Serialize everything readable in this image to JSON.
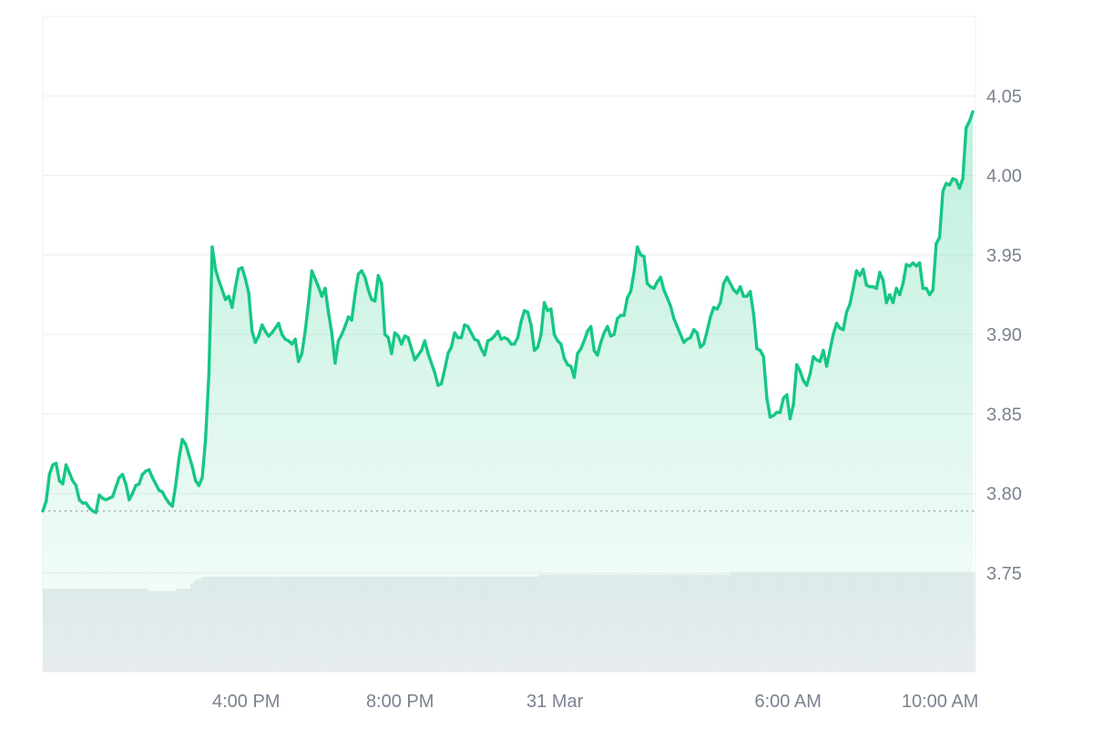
{
  "chart_data": {
    "type": "area",
    "title": "",
    "xlabel": "",
    "ylabel": "",
    "ylim": [
      3.688,
      4.1
    ],
    "y_ticks": [
      "3.75",
      "3.80",
      "3.85",
      "3.90",
      "3.95",
      "4.00",
      "4.05"
    ],
    "x_ticks": [
      "4:00 PM",
      "8:00 PM",
      "31 Mar",
      "6:00 AM",
      "10:00 AM"
    ],
    "reference_line": 3.789,
    "grid": "horizontal",
    "colors": {
      "line_up": "#16c784",
      "line_down": "#ea3943",
      "area_fill": "#16c784",
      "grid": "#eef0f3",
      "reference": "#9aa0a6",
      "volume": "#eaecf0",
      "axis_text": "#7a8290"
    },
    "series": [
      {
        "values": [
          3.789,
          3.795,
          3.812,
          3.818,
          3.819,
          3.808,
          3.806,
          3.818,
          3.813,
          3.808,
          3.805,
          3.796,
          3.794,
          3.794,
          3.791,
          3.789,
          3.788,
          3.799,
          3.797,
          3.796,
          3.797,
          3.798,
          3.804,
          3.81,
          3.812,
          3.806,
          3.796,
          3.8,
          3.805,
          3.806,
          3.812,
          3.814,
          3.815,
          3.81,
          3.806,
          3.802,
          3.801,
          3.797,
          3.794,
          3.792,
          3.805,
          3.822,
          3.834,
          3.831,
          3.824,
          3.817,
          3.808,
          3.805,
          3.81,
          3.834,
          3.875,
          3.955,
          3.941,
          3.934,
          3.928,
          3.922,
          3.924,
          3.917,
          3.93,
          3.941,
          3.942,
          3.935,
          3.926,
          3.902,
          3.895,
          3.899,
          3.906,
          3.902,
          3.899,
          3.901,
          3.904,
          3.907,
          3.9,
          3.897,
          3.896,
          3.894,
          3.897,
          3.883,
          3.888,
          3.902,
          3.92,
          3.94,
          3.935,
          3.93,
          3.924,
          3.929,
          3.914,
          3.901,
          3.882,
          3.896,
          3.9,
          3.905,
          3.911,
          3.909,
          3.925,
          3.938,
          3.94,
          3.936,
          3.928,
          3.922,
          3.921,
          3.937,
          3.932,
          3.9,
          3.898,
          3.888,
          3.901,
          3.899,
          3.894,
          3.899,
          3.898,
          3.891,
          3.884,
          3.887,
          3.89,
          3.896,
          3.888,
          3.882,
          3.876,
          3.868,
          3.869,
          3.878,
          3.888,
          3.892,
          3.901,
          3.898,
          3.898,
          3.906,
          3.905,
          3.901,
          3.897,
          3.896,
          3.891,
          3.887,
          3.896,
          3.897,
          3.899,
          3.902,
          3.897,
          3.898,
          3.897,
          3.894,
          3.894,
          3.898,
          3.908,
          3.915,
          3.914,
          3.906,
          3.89,
          3.892,
          3.9,
          3.92,
          3.915,
          3.916,
          3.9,
          3.896,
          3.894,
          3.885,
          3.881,
          3.88,
          3.873,
          3.888,
          3.891,
          3.896,
          3.902,
          3.905,
          3.89,
          3.887,
          3.895,
          3.901,
          3.905,
          3.899,
          3.9,
          3.91,
          3.912,
          3.912,
          3.923,
          3.927,
          3.939,
          3.955,
          3.95,
          3.949,
          3.932,
          3.93,
          3.929,
          3.933,
          3.936,
          3.928,
          3.923,
          3.918,
          3.91,
          3.905,
          3.9,
          3.895,
          3.897,
          3.898,
          3.903,
          3.901,
          3.892,
          3.894,
          3.902,
          3.911,
          3.917,
          3.916,
          3.92,
          3.932,
          3.936,
          3.932,
          3.928,
          3.926,
          3.93,
          3.924,
          3.924,
          3.927,
          3.913,
          3.891,
          3.89,
          3.886,
          3.86,
          3.848,
          3.849,
          3.851,
          3.851,
          3.86,
          3.862,
          3.847,
          3.856,
          3.881,
          3.877,
          3.871,
          3.868,
          3.875,
          3.886,
          3.884,
          3.883,
          3.89,
          3.88,
          3.89,
          3.9,
          3.907,
          3.904,
          3.903,
          3.914,
          3.919,
          3.929,
          3.94,
          3.937,
          3.941,
          3.931,
          3.93,
          3.93,
          3.929,
          3.939,
          3.934,
          3.92,
          3.925,
          3.92,
          3.929,
          3.925,
          3.932,
          3.944,
          3.943,
          3.945,
          3.943,
          3.945,
          3.929,
          3.929,
          3.925,
          3.928,
          3.957,
          3.961,
          3.99,
          3.995,
          3.994,
          3.998,
          3.997,
          3.992,
          3.998,
          4.03,
          4.034,
          4.04
        ]
      }
    ],
    "volume": [
      0.35,
      0.35,
      0.35,
      0.35,
      0.35,
      0.35,
      0.35,
      0.35,
      0.35,
      0.35,
      0.35,
      0.35,
      0.35,
      0.35,
      0.35,
      0.35,
      0.35,
      0.35,
      0.35,
      0.35,
      0.35,
      0.35,
      0.35,
      0.35,
      0.35,
      0.35,
      0.35,
      0.35,
      0.35,
      0.35,
      0.35,
      0.35,
      0.35,
      0.35,
      0.35,
      0.35,
      0.35,
      0.35,
      0.34,
      0.34,
      0.34,
      0.34,
      0.34,
      0.34,
      0.34,
      0.34,
      0.34,
      0.34,
      0.35,
      0.35,
      0.35,
      0.35,
      0.35,
      0.37,
      0.38,
      0.39,
      0.39,
      0.4,
      0.4,
      0.4,
      0.4,
      0.4,
      0.4,
      0.4,
      0.4,
      0.4,
      0.4,
      0.4,
      0.4,
      0.4,
      0.4,
      0.4,
      0.4,
      0.4,
      0.4,
      0.4,
      0.4,
      0.4,
      0.4,
      0.4,
      0.4,
      0.4,
      0.4,
      0.4,
      0.4,
      0.4,
      0.4,
      0.4,
      0.4,
      0.4,
      0.4,
      0.4,
      0.4,
      0.4,
      0.4,
      0.4,
      0.4,
      0.4,
      0.4,
      0.4,
      0.4,
      0.4,
      0.4,
      0.4,
      0.4,
      0.4,
      0.4,
      0.4,
      0.4,
      0.4,
      0.4,
      0.4,
      0.4,
      0.4,
      0.4,
      0.4,
      0.4,
      0.4,
      0.4,
      0.4,
      0.4,
      0.4,
      0.4,
      0.4,
      0.4,
      0.4,
      0.4,
      0.4,
      0.4,
      0.4,
      0.4,
      0.4,
      0.4,
      0.4,
      0.4,
      0.4,
      0.4,
      0.4,
      0.4,
      0.4,
      0.4,
      0.4,
      0.4,
      0.4,
      0.4,
      0.4,
      0.4,
      0.4,
      0.4,
      0.4,
      0.4,
      0.4,
      0.4,
      0.4,
      0.4,
      0.4,
      0.4,
      0.4,
      0.4,
      0.4,
      0.4,
      0.4,
      0.4,
      0.4,
      0.4,
      0.4,
      0.4,
      0.4,
      0.4,
      0.4,
      0.4,
      0.4,
      0.4,
      0.4,
      0.4,
      0.4,
      0.4,
      0.4,
      0.41,
      0.41,
      0.41,
      0.41,
      0.41,
      0.41,
      0.41,
      0.41,
      0.41,
      0.41,
      0.41,
      0.41,
      0.41,
      0.41,
      0.41,
      0.41,
      0.41,
      0.41,
      0.41,
      0.41,
      0.41,
      0.41,
      0.41,
      0.41,
      0.41,
      0.41,
      0.41,
      0.41,
      0.41,
      0.41,
      0.41,
      0.41,
      0.41,
      0.41,
      0.41,
      0.41,
      0.41,
      0.41,
      0.41,
      0.41,
      0.41,
      0.41,
      0.41,
      0.41,
      0.41,
      0.41,
      0.41,
      0.41,
      0.41,
      0.41,
      0.41,
      0.41,
      0.41,
      0.41,
      0.41,
      0.41,
      0.41,
      0.41,
      0.41,
      0.41,
      0.41,
      0.41,
      0.41,
      0.41,
      0.41,
      0.41,
      0.41,
      0.41,
      0.41,
      0.42,
      0.42,
      0.42,
      0.42,
      0.42,
      0.42,
      0.42,
      0.42,
      0.42,
      0.42,
      0.42,
      0.42,
      0.42,
      0.42,
      0.42,
      0.42,
      0.42,
      0.42,
      0.42,
      0.42,
      0.42,
      0.42,
      0.42,
      0.42,
      0.42,
      0.42,
      0.42,
      0.42,
      0.42,
      0.42,
      0.42,
      0.42,
      0.42,
      0.42,
      0.42,
      0.42,
      0.42,
      0.42,
      0.42,
      0.42,
      0.42,
      0.42,
      0.42,
      0.42,
      0.42,
      0.42,
      0.42,
      0.42,
      0.42,
      0.42,
      0.42,
      0.42,
      0.42,
      0.42,
      0.42,
      0.42,
      0.42,
      0.42,
      0.42,
      0.42,
      0.42,
      0.42,
      0.42,
      0.42,
      0.42,
      0.42,
      0.42,
      0.42,
      0.42,
      0.42,
      0.42,
      0.42,
      0.42,
      0.42,
      0.42,
      0.42,
      0.42,
      0.42,
      0.42,
      0.42,
      0.42,
      0.42,
      0.42,
      0.42,
      0.42,
      0.42,
      0.42,
      0.42
    ]
  }
}
